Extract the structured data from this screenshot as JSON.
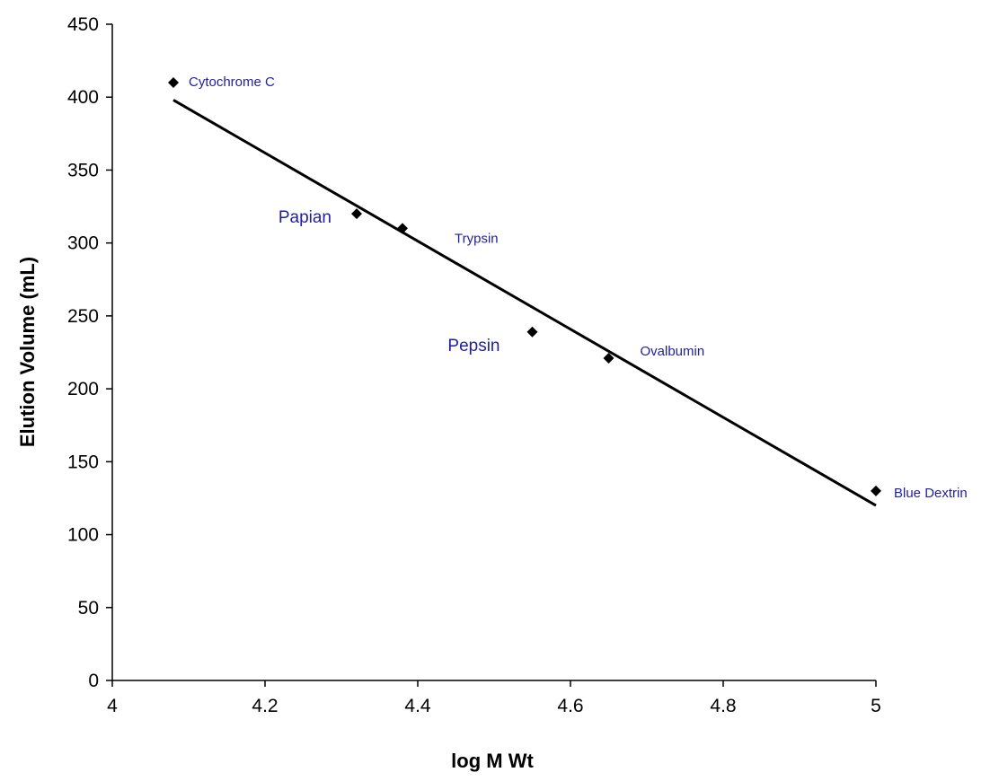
{
  "chart_data": {
    "type": "scatter",
    "title": "",
    "xlabel": "log M Wt",
    "ylabel": "Elution Volume (mL)",
    "xlim": [
      4,
      5
    ],
    "ylim": [
      0,
      450
    ],
    "x_ticks": [
      "4",
      "4.2",
      "4.4",
      "4.6",
      "4.8",
      "5"
    ],
    "y_ticks": [
      "0",
      "50",
      "100",
      "150",
      "200",
      "250",
      "300",
      "350",
      "400",
      "450"
    ],
    "grid": false,
    "legend": "none",
    "marker_color": "#000000",
    "label_color": "#1f1fa0",
    "points": [
      {
        "label": "Cytochrome C",
        "x": 4.08,
        "y": 410
      },
      {
        "label": "Papian",
        "x": 4.32,
        "y": 320
      },
      {
        "label": "Trypsin",
        "x": 4.38,
        "y": 310
      },
      {
        "label": "Pepsin",
        "x": 4.55,
        "y": 239
      },
      {
        "label": "Ovalbumin",
        "x": 4.65,
        "y": 221
      },
      {
        "label": "Blue Dextrin",
        "x": 5.0,
        "y": 130
      }
    ],
    "trendline": {
      "type": "linear",
      "from": {
        "x": 4.08,
        "y": 398
      },
      "to": {
        "x": 5.0,
        "y": 120
      }
    }
  }
}
